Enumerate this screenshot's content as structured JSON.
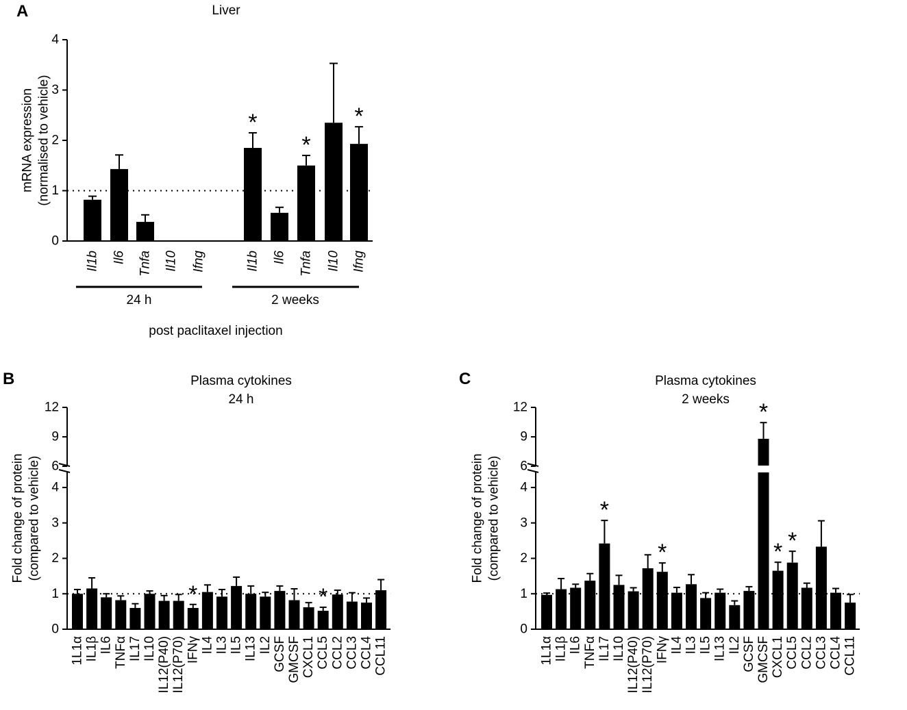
{
  "chart_data": [
    {
      "panel": "A",
      "type": "bar",
      "title": "Liver",
      "ylabel": "mRNA expression\n(normalised to vehicle)",
      "yticks": [
        "0",
        "1",
        "2",
        "3",
        "4"
      ],
      "ylim": [
        0,
        4
      ],
      "reference_line": 1,
      "xlabel": "post paclitaxel injection",
      "groups": [
        {
          "label": "24 h",
          "categories": [
            "Il1b",
            "Il6",
            "Tnfa",
            "Il10",
            "Ifng"
          ],
          "values": [
            0.82,
            1.43,
            0.38,
            0,
            0
          ],
          "errors": [
            0.07,
            0.28,
            0.14,
            0,
            0
          ],
          "significant": [
            false,
            false,
            false,
            false,
            false
          ]
        },
        {
          "label": "2 weeks",
          "categories": [
            "Il1b",
            "Il6",
            "Tnfa",
            "Il10",
            "Ifng"
          ],
          "values": [
            1.85,
            0.56,
            1.5,
            2.35,
            1.93
          ],
          "errors": [
            0.3,
            0.11,
            0.2,
            1.18,
            0.34
          ],
          "significant": [
            true,
            false,
            true,
            false,
            true
          ]
        }
      ]
    },
    {
      "panel": "B",
      "type": "bar",
      "title": "Plasma cytokines",
      "subtitle": "24 h",
      "ylabel": "Fold change of protein\n(compared to vehicle)",
      "yticks_lower": [
        "0",
        "1",
        "2",
        "3",
        "4"
      ],
      "yticks_upper": [
        "6",
        "9",
        "12"
      ],
      "ylim": [
        0,
        12
      ],
      "axis_break": [
        4.5,
        6
      ],
      "reference_line": 1,
      "categories": [
        "1L1α",
        "IL1β",
        "IL6",
        "TNFα",
        "IL17",
        "IL10",
        "IL12(P40)",
        "IL12(P70)",
        "IFNγ",
        "IL4",
        "IL3",
        "IL5",
        "IL13",
        "IL2",
        "GCSF",
        "GMCSF",
        "CXCL1",
        "CCL5",
        "CCL2",
        "CCL3",
        "CCL4",
        "CCL11"
      ],
      "values": [
        1.0,
        1.15,
        0.9,
        0.82,
        0.6,
        1.0,
        0.8,
        0.8,
        0.6,
        1.05,
        0.92,
        1.22,
        1.0,
        0.92,
        1.08,
        0.82,
        0.62,
        0.52,
        0.98,
        0.78,
        0.75,
        1.1
      ],
      "errors": [
        0.12,
        0.3,
        0.1,
        0.12,
        0.12,
        0.08,
        0.15,
        0.18,
        0.1,
        0.2,
        0.2,
        0.25,
        0.22,
        0.12,
        0.14,
        0.32,
        0.13,
        0.1,
        0.12,
        0.25,
        0.13,
        0.3
      ],
      "significant": [
        false,
        false,
        false,
        false,
        false,
        false,
        false,
        false,
        true,
        false,
        false,
        false,
        false,
        false,
        false,
        false,
        false,
        true,
        false,
        false,
        false,
        false
      ]
    },
    {
      "panel": "C",
      "type": "bar",
      "title": "Plasma cytokines",
      "subtitle": "2 weeks",
      "ylabel": "Fold change of protein\n(compared to vehicle)",
      "yticks_lower": [
        "0",
        "1",
        "2",
        "3",
        "4"
      ],
      "yticks_upper": [
        "6",
        "9",
        "12"
      ],
      "ylim": [
        0,
        12
      ],
      "axis_break": [
        4.5,
        6
      ],
      "reference_line": 1,
      "categories": [
        "1L1α",
        "IL1β",
        "IL6",
        "TNFα",
        "IL17",
        "IL10",
        "IL12(P40)",
        "IL12(P70)",
        "IFNγ",
        "IL4",
        "IL3",
        "IL5",
        "IL13",
        "IL2",
        "GCSF",
        "GMCSF",
        "CXCL1",
        "CCL5",
        "CCL2",
        "CCL3",
        "CCL4",
        "CCL11"
      ],
      "values": [
        0.97,
        1.13,
        1.17,
        1.37,
        2.42,
        1.25,
        1.07,
        1.72,
        1.62,
        1.03,
        1.27,
        0.88,
        1.03,
        0.68,
        1.08,
        8.8,
        1.65,
        1.88,
        1.17,
        2.33,
        1.03,
        0.75
      ],
      "errors": [
        0.05,
        0.3,
        0.1,
        0.2,
        0.65,
        0.27,
        0.1,
        0.38,
        0.25,
        0.15,
        0.27,
        0.15,
        0.1,
        0.12,
        0.12,
        1.65,
        0.24,
        0.32,
        0.13,
        0.73,
        0.12,
        0.23
      ],
      "significant": [
        false,
        false,
        false,
        false,
        true,
        false,
        false,
        false,
        true,
        false,
        false,
        false,
        false,
        false,
        false,
        true,
        true,
        true,
        false,
        false,
        false,
        false
      ]
    }
  ]
}
